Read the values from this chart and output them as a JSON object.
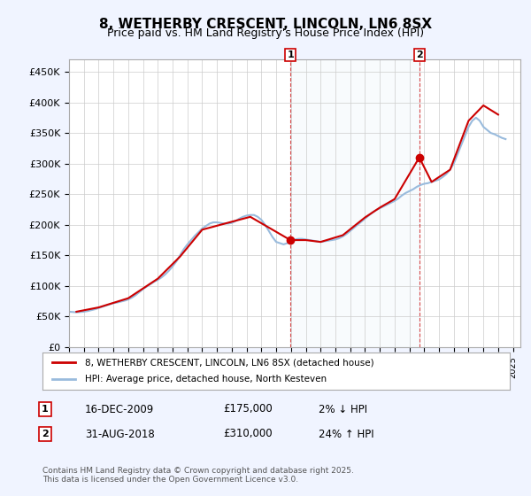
{
  "title": "8, WETHERBY CRESCENT, LINCOLN, LN6 8SX",
  "subtitle": "Price paid vs. HM Land Registry's House Price Index (HPI)",
  "ylabel": "",
  "ylim": [
    0,
    470000
  ],
  "yticks": [
    0,
    50000,
    100000,
    150000,
    200000,
    250000,
    300000,
    350000,
    400000,
    450000
  ],
  "ytick_labels": [
    "£0",
    "£50K",
    "£100K",
    "£150K",
    "£200K",
    "£250K",
    "£300K",
    "£350K",
    "£400K",
    "£450K"
  ],
  "bg_color": "#f0f4ff",
  "plot_bg": "#ffffff",
  "grid_color": "#cccccc",
  "red_color": "#cc0000",
  "blue_color": "#99bbdd",
  "sale1_year": 2009.96,
  "sale1_price": 175000,
  "sale1_label": "1",
  "sale1_date": "16-DEC-2009",
  "sale1_pct": "2% ↓ HPI",
  "sale2_year": 2018.67,
  "sale2_price": 310000,
  "sale2_label": "2",
  "sale2_date": "31-AUG-2018",
  "sale2_pct": "24% ↑ HPI",
  "legend_line1": "8, WETHERBY CRESCENT, LINCOLN, LN6 8SX (detached house)",
  "legend_line2": "HPI: Average price, detached house, North Kesteven",
  "footer": "Contains HM Land Registry data © Crown copyright and database right 2025.\nThis data is licensed under the Open Government Licence v3.0.",
  "hpi_years": [
    1995.0,
    1995.25,
    1995.5,
    1995.75,
    1996.0,
    1996.25,
    1996.5,
    1996.75,
    1997.0,
    1997.25,
    1997.5,
    1997.75,
    1998.0,
    1998.25,
    1998.5,
    1998.75,
    1999.0,
    1999.25,
    1999.5,
    1999.75,
    2000.0,
    2000.25,
    2000.5,
    2000.75,
    2001.0,
    2001.25,
    2001.5,
    2001.75,
    2002.0,
    2002.25,
    2002.5,
    2002.75,
    2003.0,
    2003.25,
    2003.5,
    2003.75,
    2004.0,
    2004.25,
    2004.5,
    2004.75,
    2005.0,
    2005.25,
    2005.5,
    2005.75,
    2006.0,
    2006.25,
    2006.5,
    2006.75,
    2007.0,
    2007.25,
    2007.5,
    2007.75,
    2008.0,
    2008.25,
    2008.5,
    2008.75,
    2009.0,
    2009.25,
    2009.5,
    2009.75,
    2010.0,
    2010.25,
    2010.5,
    2010.75,
    2011.0,
    2011.25,
    2011.5,
    2011.75,
    2012.0,
    2012.25,
    2012.5,
    2012.75,
    2013.0,
    2013.25,
    2013.5,
    2013.75,
    2014.0,
    2014.25,
    2014.5,
    2014.75,
    2015.0,
    2015.25,
    2015.5,
    2015.75,
    2016.0,
    2016.25,
    2016.5,
    2016.75,
    2017.0,
    2017.25,
    2017.5,
    2017.75,
    2018.0,
    2018.25,
    2018.5,
    2018.75,
    2019.0,
    2019.25,
    2019.5,
    2019.75,
    2020.0,
    2020.25,
    2020.5,
    2020.75,
    2021.0,
    2021.25,
    2021.5,
    2021.75,
    2022.0,
    2022.25,
    2022.5,
    2022.75,
    2023.0,
    2023.25,
    2023.5,
    2023.75,
    2024.0,
    2024.25,
    2024.5
  ],
  "hpi_values": [
    58000,
    57500,
    57000,
    57500,
    58000,
    59000,
    60500,
    62000,
    64000,
    66000,
    68000,
    70000,
    72000,
    73000,
    74500,
    76000,
    78000,
    81000,
    85000,
    90000,
    95000,
    99000,
    103000,
    107000,
    110000,
    114000,
    119000,
    125000,
    132000,
    140000,
    150000,
    160000,
    168000,
    175000,
    182000,
    188000,
    194000,
    198000,
    202000,
    204000,
    204000,
    203000,
    202000,
    202000,
    203000,
    206000,
    210000,
    213000,
    215000,
    216000,
    216000,
    213000,
    208000,
    200000,
    190000,
    180000,
    172000,
    170000,
    168000,
    170000,
    174000,
    176000,
    177000,
    177000,
    176000,
    175000,
    174000,
    173000,
    172000,
    173000,
    174000,
    175000,
    176000,
    178000,
    181000,
    185000,
    190000,
    195000,
    200000,
    205000,
    210000,
    215000,
    220000,
    224000,
    227000,
    230000,
    233000,
    236000,
    239000,
    243000,
    248000,
    252000,
    255000,
    258000,
    262000,
    265000,
    267000,
    268000,
    270000,
    272000,
    274000,
    278000,
    283000,
    290000,
    300000,
    315000,
    330000,
    345000,
    360000,
    370000,
    375000,
    370000,
    360000,
    355000,
    350000,
    348000,
    345000,
    342000,
    340000
  ],
  "price_years": [
    1995.5,
    1997.0,
    1999.0,
    2001.0,
    2002.5,
    2004.0,
    2006.0,
    2007.25,
    2009.96,
    2011.0,
    2012.0,
    2013.5,
    2015.0,
    2016.0,
    2017.0,
    2018.67,
    2019.5,
    2020.75,
    2022.0,
    2023.0,
    2024.0
  ],
  "price_values": [
    58000,
    65000,
    80000,
    112000,
    148000,
    192000,
    205000,
    213000,
    175000,
    175000,
    172000,
    183000,
    212000,
    228000,
    242000,
    310000,
    270000,
    290000,
    370000,
    395000,
    380000
  ]
}
